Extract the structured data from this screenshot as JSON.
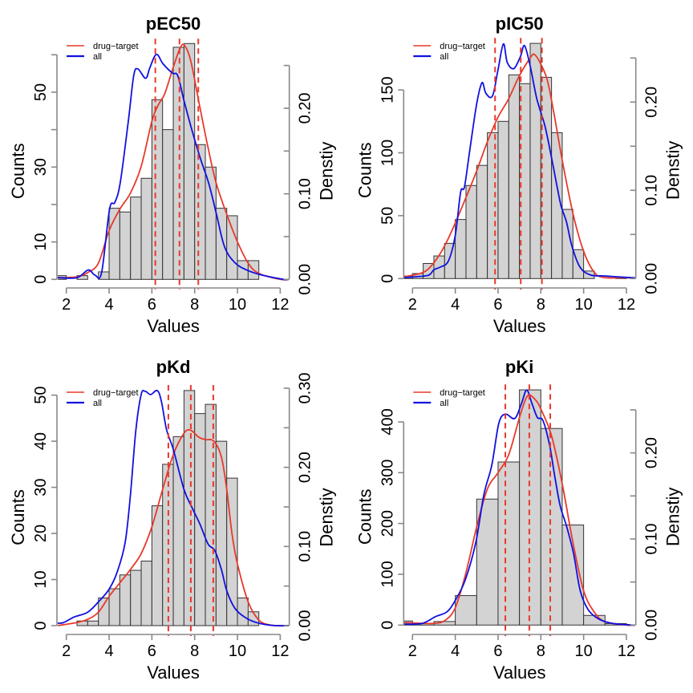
{
  "chart_data": [
    {
      "type": "bar",
      "title": "pEC50",
      "xlabel": "Values",
      "ylabel": "Counts",
      "y2label": "Denstiy",
      "xlim": [
        1.6,
        12.4
      ],
      "ylim": [
        0,
        62
      ],
      "y2lim": [
        0,
        0.26
      ],
      "x_ticks": [
        2,
        4,
        6,
        8,
        10,
        12
      ],
      "y_ticks": [
        0,
        10,
        20,
        30,
        40,
        50,
        60
      ],
      "y_tick_labels": [
        "0",
        "10",
        "",
        "30",
        "",
        "50",
        ""
      ],
      "y2_ticks": [
        0,
        0.05,
        0.1,
        0.15,
        0.2,
        0.25
      ],
      "y2_tick_labels": [
        "0.00",
        "",
        "0.10",
        "",
        "0.20",
        ""
      ],
      "histogram": {
        "bin_edges": [
          1.5,
          2.0,
          2.5,
          3.0,
          3.5,
          4.0,
          4.5,
          5.0,
          5.5,
          6.0,
          6.5,
          7.0,
          7.5,
          8.0,
          8.5,
          9.0,
          9.5,
          10.0,
          10.5,
          11.0
        ],
        "counts": [
          1,
          0,
          1,
          0,
          2,
          19,
          18,
          22,
          27,
          48,
          40,
          62,
          63,
          36,
          30,
          19,
          17,
          5,
          5
        ]
      },
      "dashed_lines": [
        6.16,
        7.29,
        8.17
      ],
      "legend": {
        "position": "top-left",
        "entries": [
          {
            "label": "drug−target",
            "color": "#e8392b"
          },
          {
            "label": "all",
            "color": "#1010e0"
          }
        ]
      },
      "series": [
        {
          "name": "drug−target",
          "axis": "density",
          "x": [
            1.6,
            2.5,
            3.0,
            3.5,
            4.0,
            4.5,
            5.0,
            5.5,
            6.0,
            6.3,
            6.6,
            7.0,
            7.3,
            7.5,
            7.8,
            8.2,
            8.6,
            9.0,
            9.5,
            10.0,
            10.5,
            11.0,
            12.0,
            12.4
          ],
          "values": [
            0.002,
            0.003,
            0.008,
            0.019,
            0.057,
            0.082,
            0.101,
            0.132,
            0.185,
            0.204,
            0.217,
            0.248,
            0.269,
            0.274,
            0.257,
            0.207,
            0.157,
            0.113,
            0.076,
            0.044,
            0.019,
            0.007,
            0.0,
            0.0
          ]
        },
        {
          "name": "all",
          "axis": "density",
          "x": [
            1.6,
            2.5,
            3.02,
            3.34,
            3.65,
            4.02,
            4.27,
            4.52,
            4.9,
            5.15,
            5.34,
            5.71,
            5.9,
            6.21,
            6.52,
            6.96,
            7.21,
            7.52,
            7.9,
            8.27,
            8.65,
            9.02,
            9.4,
            9.9,
            10.52,
            11.15,
            12.15,
            12.4
          ],
          "values": [
            0.002,
            0.002,
            0.011,
            0.005,
            0.008,
            0.082,
            0.09,
            0.113,
            0.185,
            0.238,
            0.246,
            0.235,
            0.247,
            0.263,
            0.252,
            0.241,
            0.238,
            0.207,
            0.172,
            0.141,
            0.113,
            0.076,
            0.038,
            0.019,
            0.01,
            0.005,
            0.0,
            0.0
          ]
        }
      ]
    },
    {
      "type": "bar",
      "title": "pIC50",
      "xlabel": "Values",
      "ylabel": "Counts",
      "y2label": "Denstiy",
      "xlim": [
        1.6,
        12.4
      ],
      "ylim": [
        0,
        190
      ],
      "y2lim": [
        0,
        0.26
      ],
      "x_ticks": [
        2,
        4,
        6,
        8,
        10,
        12
      ],
      "y_ticks": [
        0,
        50,
        100,
        150
      ],
      "y_tick_labels": [
        "0",
        "50",
        "100",
        "150"
      ],
      "y2_ticks": [
        0,
        0.05,
        0.1,
        0.15,
        0.2,
        0.25
      ],
      "y2_tick_labels": [
        "0.00",
        "",
        "0.10",
        "",
        "0.20",
        ""
      ],
      "histogram": {
        "bin_edges": [
          1.5,
          2.0,
          2.5,
          3.0,
          3.5,
          4.0,
          4.5,
          5.0,
          5.5,
          6.0,
          6.5,
          7.0,
          7.5,
          8.0,
          8.5,
          9.0,
          9.5,
          10.0,
          10.5,
          11.0,
          11.5,
          12.0
        ],
        "counts": [
          2,
          4,
          12,
          18,
          28,
          47,
          74,
          90,
          116,
          125,
          162,
          155,
          187,
          160,
          116,
          55,
          23,
          6,
          0,
          0,
          1
        ]
      },
      "dashed_lines": [
        5.86,
        7.06,
        8.05
      ],
      "legend": {
        "position": "top-left",
        "entries": [
          {
            "label": "drug−target",
            "color": "#e8392b"
          },
          {
            "label": "all",
            "color": "#1010e0"
          }
        ]
      },
      "series": [
        {
          "name": "drug−target",
          "axis": "density",
          "x": [
            1.6,
            2.5,
            3.0,
            3.5,
            4.0,
            4.5,
            5.0,
            5.5,
            6.0,
            6.5,
            7.0,
            7.5,
            7.7,
            8.0,
            8.3,
            8.6,
            9.0,
            9.5,
            10.0,
            10.5,
            11.0,
            12.0,
            12.4
          ],
          "values": [
            0.002,
            0.007,
            0.018,
            0.037,
            0.063,
            0.092,
            0.122,
            0.155,
            0.183,
            0.204,
            0.23,
            0.25,
            0.254,
            0.243,
            0.225,
            0.189,
            0.134,
            0.074,
            0.031,
            0.007,
            0.001,
            0.001,
            0.0
          ]
        },
        {
          "name": "all",
          "axis": "density",
          "x": [
            1.59,
            2.58,
            2.83,
            3.0,
            3.3,
            3.68,
            4.0,
            4.25,
            4.43,
            4.68,
            5.0,
            5.25,
            5.43,
            5.74,
            6.0,
            6.25,
            6.43,
            6.74,
            7.05,
            7.24,
            7.5,
            7.81,
            8.19,
            8.5,
            8.76,
            8.95,
            9.2,
            9.45,
            9.83,
            10.33,
            10.95,
            11.58,
            12.26,
            12.4
          ],
          "values": [
            0.001,
            0.003,
            0.005,
            0.01,
            0.013,
            0.02,
            0.049,
            0.098,
            0.104,
            0.146,
            0.198,
            0.222,
            0.21,
            0.207,
            0.237,
            0.266,
            0.245,
            0.238,
            0.252,
            0.264,
            0.241,
            0.204,
            0.173,
            0.137,
            0.104,
            0.082,
            0.064,
            0.037,
            0.013,
            0.004,
            0.003,
            0.002,
            0.001,
            0.001
          ]
        }
      ]
    },
    {
      "type": "bar",
      "title": "pKd",
      "xlabel": "Values",
      "ylabel": "Counts",
      "y2label": "Denstiy",
      "xlim": [
        1.6,
        12.4
      ],
      "ylim": [
        0,
        51
      ],
      "y2lim": [
        0,
        0.3
      ],
      "x_ticks": [
        2,
        4,
        6,
        8,
        10,
        12
      ],
      "y_ticks": [
        0,
        10,
        20,
        30,
        40,
        50
      ],
      "y_tick_labels": [
        "0",
        "10",
        "20",
        "30",
        "40",
        "50"
      ],
      "y2_ticks": [
        0,
        0.05,
        0.1,
        0.15,
        0.2,
        0.25,
        0.3
      ],
      "y2_tick_labels": [
        "0.00",
        "",
        "0.10",
        "",
        "0.20",
        "",
        "0.30"
      ],
      "histogram": {
        "bin_edges": [
          2.5,
          3.0,
          3.5,
          4.0,
          4.5,
          5.0,
          5.5,
          6.0,
          6.5,
          7.0,
          7.5,
          8.0,
          8.5,
          9.0,
          9.5,
          10.0,
          10.5,
          11.0
        ],
        "counts": [
          1,
          1,
          6,
          8,
          11,
          12,
          14,
          26,
          35,
          41,
          51,
          46,
          48,
          40,
          32,
          6,
          3
        ]
      },
      "dashed_lines": [
        6.77,
        7.82,
        8.87
      ],
      "legend": {
        "position": "top-left",
        "entries": [
          {
            "label": "drug−target",
            "color": "#e8392b"
          },
          {
            "label": "all",
            "color": "#1010e0"
          }
        ]
      },
      "series": [
        {
          "name": "drug−target",
          "axis": "density",
          "x": [
            1.6,
            2.5,
            3.0,
            3.5,
            4.0,
            4.5,
            5.0,
            5.5,
            6.0,
            6.5,
            7.0,
            7.5,
            7.8,
            8.2,
            8.5,
            8.9,
            9.25,
            9.5,
            9.75,
            10.0,
            10.5,
            11.0,
            11.5,
            12.0,
            12.4
          ],
          "values": [
            0.0,
            0.004,
            0.008,
            0.017,
            0.037,
            0.054,
            0.071,
            0.091,
            0.125,
            0.172,
            0.216,
            0.243,
            0.247,
            0.238,
            0.235,
            0.233,
            0.213,
            0.172,
            0.115,
            0.078,
            0.03,
            0.007,
            0.001,
            0.0,
            0.0
          ]
        },
        {
          "name": "all",
          "axis": "density",
          "x": [
            1.6,
            1.88,
            2.38,
            3.0,
            3.5,
            4.0,
            4.38,
            4.75,
            5.0,
            5.25,
            5.5,
            5.69,
            5.94,
            6.25,
            6.44,
            6.69,
            7.0,
            7.5,
            7.88,
            8.25,
            8.63,
            8.94,
            9.25,
            9.5,
            9.88,
            10.38,
            11.0,
            11.75,
            12.4
          ],
          "values": [
            0.003,
            0.004,
            0.011,
            0.017,
            0.03,
            0.046,
            0.068,
            0.105,
            0.166,
            0.247,
            0.292,
            0.296,
            0.292,
            0.297,
            0.284,
            0.247,
            0.223,
            0.172,
            0.149,
            0.128,
            0.103,
            0.095,
            0.071,
            0.044,
            0.022,
            0.01,
            0.003,
            0.0,
            0.0
          ]
        }
      ]
    },
    {
      "type": "bar",
      "title": "pKi",
      "xlabel": "Values",
      "ylabel": "Counts",
      "y2label": "Denstiy",
      "xlim": [
        1.6,
        12.4
      ],
      "ylim": [
        0,
        475
      ],
      "y2lim": [
        0,
        0.26
      ],
      "x_ticks": [
        2,
        4,
        6,
        8,
        10,
        12
      ],
      "y_ticks": [
        0,
        100,
        200,
        300,
        400
      ],
      "y_tick_labels": [
        "0",
        "100",
        "200",
        "300",
        "400"
      ],
      "y2_ticks": [
        0,
        0.05,
        0.1,
        0.15,
        0.2,
        0.25
      ],
      "y2_tick_labels": [
        "0.00",
        "",
        "0.10",
        "",
        "0.20",
        ""
      ],
      "histogram": {
        "bin_edges": [
          1,
          2,
          3,
          4,
          5,
          6,
          7,
          8,
          9,
          10,
          11,
          12
        ],
        "counts": [
          8,
          3,
          7,
          58,
          248,
          321,
          463,
          387,
          197,
          19,
          3
        ]
      },
      "dashed_lines": [
        6.34,
        7.46,
        8.44
      ],
      "legend": {
        "position": "top-left",
        "entries": [
          {
            "label": "drug−target",
            "color": "#e8392b"
          },
          {
            "label": "all",
            "color": "#1010e0"
          }
        ]
      },
      "series": [
        {
          "name": "drug−target",
          "axis": "density",
          "x": [
            1.6,
            2.5,
            3.0,
            3.5,
            4.0,
            4.5,
            5.0,
            5.5,
            6.0,
            6.5,
            7.0,
            7.3,
            7.5,
            7.8,
            8.0,
            8.5,
            9.0,
            9.5,
            10.0,
            10.5,
            11.0,
            12.0,
            12.4
          ],
          "values": [
            0.003,
            0.002,
            0.002,
            0.005,
            0.02,
            0.061,
            0.114,
            0.158,
            0.177,
            0.198,
            0.241,
            0.263,
            0.267,
            0.26,
            0.251,
            0.22,
            0.164,
            0.096,
            0.04,
            0.015,
            0.004,
            0.0,
            0.0
          ]
        },
        {
          "name": "all",
          "axis": "density",
          "x": [
            1.59,
            2.46,
            3.09,
            3.59,
            3.96,
            4.46,
            4.96,
            5.34,
            5.71,
            6.03,
            6.34,
            6.78,
            7.09,
            7.34,
            7.59,
            7.84,
            8.09,
            8.4,
            8.65,
            8.9,
            9.21,
            9.53,
            9.84,
            10.21,
            10.71,
            11.34,
            12.28,
            12.4
          ],
          "values": [
            0.001,
            0.002,
            0.01,
            0.015,
            0.027,
            0.052,
            0.096,
            0.152,
            0.186,
            0.234,
            0.245,
            0.24,
            0.257,
            0.273,
            0.257,
            0.241,
            0.238,
            0.21,
            0.173,
            0.139,
            0.114,
            0.083,
            0.04,
            0.018,
            0.007,
            0.002,
            0.0,
            0.0
          ]
        }
      ]
    }
  ]
}
